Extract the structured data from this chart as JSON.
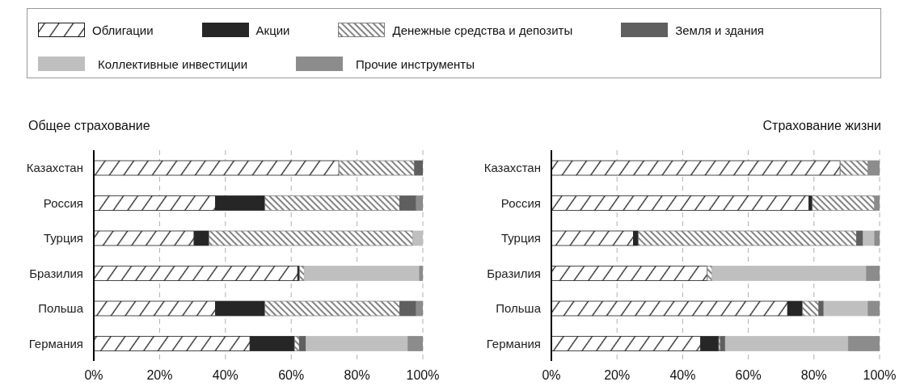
{
  "chart_data": [
    {
      "type": "bar",
      "orientation": "horizontal",
      "stacked": true,
      "title": "Общее страхование",
      "categories": [
        "Казахстан",
        "Россия",
        "Турция",
        "Бразилия",
        "Польша",
        "Германия"
      ],
      "series": [
        {
          "name": "Облигации",
          "color": "#1a1a1a",
          "values": [
            74.5,
            37,
            30.5,
            62,
            37,
            47.5
          ]
        },
        {
          "name": "Акции",
          "color": "#262626",
          "values": [
            null,
            15,
            4.5,
            0.5,
            15,
            13.5
          ]
        },
        {
          "name": "Денежные средства и депозиты",
          "color": "#808080",
          "values": [
            23,
            41,
            62,
            1.5,
            41,
            1.5
          ]
        },
        {
          "name": "Земля и здания",
          "color": "#5f5f5f",
          "values": [
            2.5,
            5,
            null,
            null,
            5,
            2
          ]
        },
        {
          "name": "Коллективные инвестиции",
          "color": "#bfbfbf",
          "values": [
            null,
            null,
            3,
            35,
            null,
            31
          ]
        },
        {
          "name": "Прочие инструменты",
          "color": "#8c8c8c",
          "values": [
            null,
            2,
            null,
            1,
            2,
            4.5
          ]
        }
      ],
      "xlim": [
        0,
        100
      ],
      "xticks": [
        {
          "value": 0,
          "label": "0%"
        },
        {
          "value": 20,
          "label": "20%"
        },
        {
          "value": 40,
          "label": "40%"
        },
        {
          "value": 60,
          "label": "60%"
        },
        {
          "value": 80,
          "label": "80%"
        },
        {
          "value": 100,
          "label": "100%"
        }
      ],
      "grid": "x",
      "legend": "top"
    },
    {
      "type": "bar",
      "orientation": "horizontal",
      "stacked": true,
      "title": "Страхование жизни",
      "categories": [
        "Казахстан",
        "Россия",
        "Турция",
        "Бразилия",
        "Польша",
        "Германия"
      ],
      "series": [
        {
          "name": "Облигации",
          "color": "#1a1a1a",
          "values": [
            88,
            78.5,
            25,
            47.5,
            72,
            45.5
          ]
        },
        {
          "name": "Акции",
          "color": "#262626",
          "values": [
            null,
            1,
            1.5,
            null,
            4.5,
            5.5
          ]
        },
        {
          "name": "Денежные средства и депозиты",
          "color": "#808080",
          "values": [
            8.5,
            19,
            66.5,
            1.5,
            5,
            0.5
          ]
        },
        {
          "name": "Земля и здания",
          "color": "#5f5f5f",
          "values": [
            null,
            null,
            2,
            null,
            1.5,
            1.5
          ]
        },
        {
          "name": "Коллективные инвестиции",
          "color": "#bfbfbf",
          "values": [
            null,
            null,
            3.5,
            47,
            13.5,
            37.5
          ]
        },
        {
          "name": "Прочие инструменты",
          "color": "#8c8c8c",
          "values": [
            3.5,
            1.5,
            1.5,
            4,
            3.5,
            9.5
          ]
        }
      ],
      "xlim": [
        0,
        100
      ],
      "xticks": [
        {
          "value": 0,
          "label": "0%"
        },
        {
          "value": 20,
          "label": "20%"
        },
        {
          "value": 40,
          "label": "40%"
        },
        {
          "value": 60,
          "label": "60%"
        },
        {
          "value": 80,
          "label": "80%"
        },
        {
          "value": 100,
          "label": "100%"
        }
      ],
      "grid": "x"
    }
  ]
}
